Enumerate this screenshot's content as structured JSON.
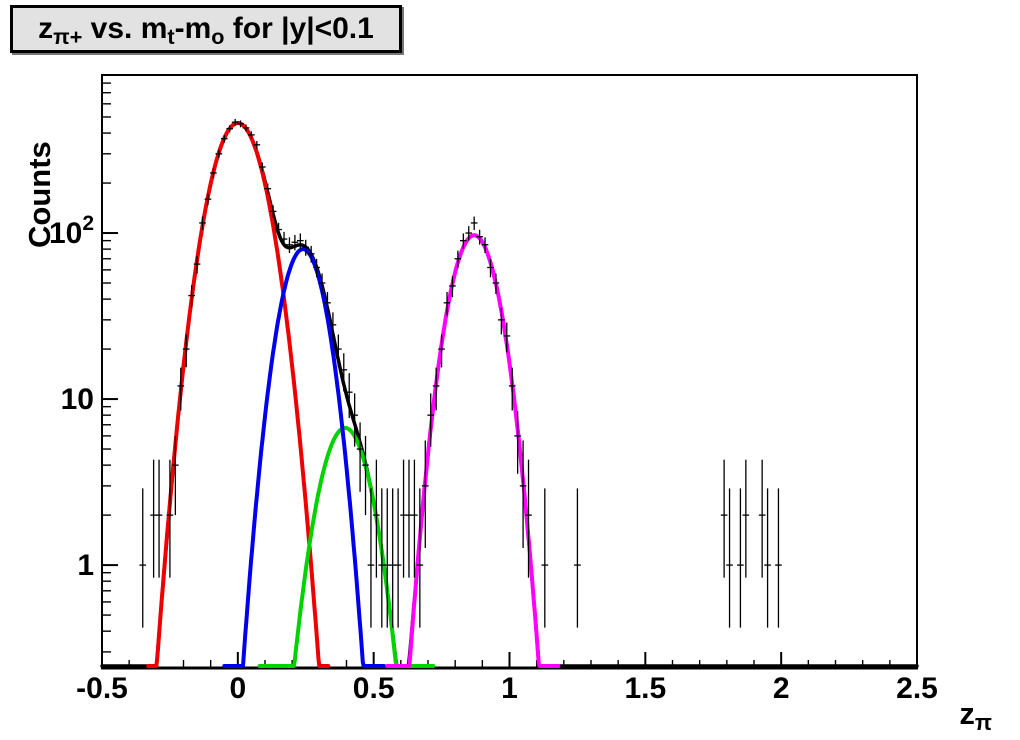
{
  "chart_data": {
    "type": "line",
    "subtype": "histogram-with-gaussian-fits",
    "title_segments": [
      {
        "text": "z"
      },
      {
        "text": "π+",
        "sub": true
      },
      {
        "text": " vs. m"
      },
      {
        "text": "t",
        "sub": true
      },
      {
        "text": "-m"
      },
      {
        "text": "o",
        "sub": true
      },
      {
        "text": " for |y|<0.1"
      }
    ],
    "ylabel": "Counts",
    "xlabel_segments": [
      {
        "text": "z"
      },
      {
        "text": "π",
        "sub": true
      }
    ],
    "x_axis": {
      "min": -0.5,
      "max": 2.5,
      "major_tick_values": [
        -0.5,
        0,
        0.5,
        1,
        1.5,
        2,
        2.5
      ],
      "major_tick_labels": [
        "-0.5",
        "0",
        "0.5",
        "1",
        "1.5",
        "2",
        "2.5"
      ],
      "minor_tick_step": 0.1
    },
    "y_axis": {
      "scale": "log",
      "min": 0.24,
      "max": 895,
      "major_ticks": [
        {
          "value": 1,
          "label": "1",
          "sup": ""
        },
        {
          "value": 10,
          "label": "10",
          "sup": ""
        },
        {
          "value": 100,
          "label": "10",
          "sup": "2"
        }
      ]
    },
    "grid": false,
    "legend": "none",
    "frame_color": "#000000",
    "background_color": "#ffffff",
    "fit_curves": [
      {
        "name": "total-fit",
        "color": "#000000",
        "type": "sum",
        "range": [
          -0.5,
          2.5
        ],
        "width": 3.5
      },
      {
        "name": "peak1-gaussian",
        "color": "#ee0000",
        "type": "gaussian",
        "amplitude": 460,
        "mean": 0.0,
        "sigma": 0.077,
        "range": [
          -0.33,
          0.335
        ],
        "width": 4
      },
      {
        "name": "peak3-gaussian",
        "color": "#00d300",
        "type": "gaussian",
        "amplitude": 6.7,
        "mean": 0.395,
        "sigma": 0.073,
        "range": [
          0.08,
          0.72
        ],
        "width": 4
      },
      {
        "name": "peak2-gaussian",
        "color": "#0000ee",
        "type": "gaussian",
        "amplitude": 80,
        "mean": 0.24,
        "sigma": 0.065,
        "range": [
          -0.05,
          0.54
        ],
        "width": 4
      },
      {
        "name": "peak4-gaussian",
        "color": "#ff00ff",
        "type": "gaussian",
        "amplitude": 97,
        "mean": 0.87,
        "sigma": 0.069,
        "range": [
          0.55,
          1.18
        ],
        "width": 4
      }
    ],
    "sum_components": [
      "peak1-gaussian",
      "peak2-gaussian",
      "peak3-gaussian",
      "peak4-gaussian"
    ],
    "bin_width": 0.02,
    "marker_color": "#000000",
    "data_points": [
      [
        -0.35,
        1
      ],
      [
        -0.31,
        2
      ],
      [
        -0.29,
        2
      ],
      [
        -0.25,
        2
      ],
      [
        -0.23,
        4
      ],
      [
        -0.21,
        12
      ],
      [
        -0.19,
        20
      ],
      [
        -0.17,
        42
      ],
      [
        -0.15,
        65
      ],
      [
        -0.13,
        115
      ],
      [
        -0.11,
        160
      ],
      [
        -0.09,
        230
      ],
      [
        -0.07,
        300
      ],
      [
        -0.05,
        370
      ],
      [
        -0.03,
        425
      ],
      [
        -0.01,
        465
      ],
      [
        0.01,
        455
      ],
      [
        0.03,
        430
      ],
      [
        0.05,
        390
      ],
      [
        0.07,
        340
      ],
      [
        0.09,
        250
      ],
      [
        0.11,
        185
      ],
      [
        0.13,
        135
      ],
      [
        0.15,
        105
      ],
      [
        0.17,
        92
      ],
      [
        0.19,
        85
      ],
      [
        0.21,
        88
      ],
      [
        0.23,
        90
      ],
      [
        0.25,
        82
      ],
      [
        0.27,
        75
      ],
      [
        0.29,
        62
      ],
      [
        0.31,
        50
      ],
      [
        0.33,
        38
      ],
      [
        0.35,
        28
      ],
      [
        0.37,
        20
      ],
      [
        0.39,
        15
      ],
      [
        0.41,
        11
      ],
      [
        0.43,
        8
      ],
      [
        0.45,
        5
      ],
      [
        0.47,
        4
      ],
      [
        0.49,
        1
      ],
      [
        0.51,
        2
      ],
      [
        0.53,
        1
      ],
      [
        0.55,
        1
      ],
      [
        0.57,
        1
      ],
      [
        0.59,
        1
      ],
      [
        0.61,
        2
      ],
      [
        0.63,
        2
      ],
      [
        0.65,
        2
      ],
      [
        0.67,
        1
      ],
      [
        0.69,
        3
      ],
      [
        0.71,
        8
      ],
      [
        0.73,
        12
      ],
      [
        0.75,
        20
      ],
      [
        0.77,
        38
      ],
      [
        0.79,
        48
      ],
      [
        0.81,
        70
      ],
      [
        0.83,
        90
      ],
      [
        0.85,
        100
      ],
      [
        0.87,
        115
      ],
      [
        0.89,
        95
      ],
      [
        0.91,
        85
      ],
      [
        0.93,
        62
      ],
      [
        0.95,
        50
      ],
      [
        0.97,
        30
      ],
      [
        0.99,
        24
      ],
      [
        1.01,
        12
      ],
      [
        1.03,
        6
      ],
      [
        1.05,
        3
      ],
      [
        1.07,
        2
      ],
      [
        1.13,
        1
      ],
      [
        1.25,
        1
      ],
      [
        1.79,
        2
      ],
      [
        1.81,
        1
      ],
      [
        1.85,
        1
      ],
      [
        1.87,
        2
      ],
      [
        1.93,
        2
      ],
      [
        1.95,
        1
      ],
      [
        1.99,
        1
      ]
    ]
  }
}
